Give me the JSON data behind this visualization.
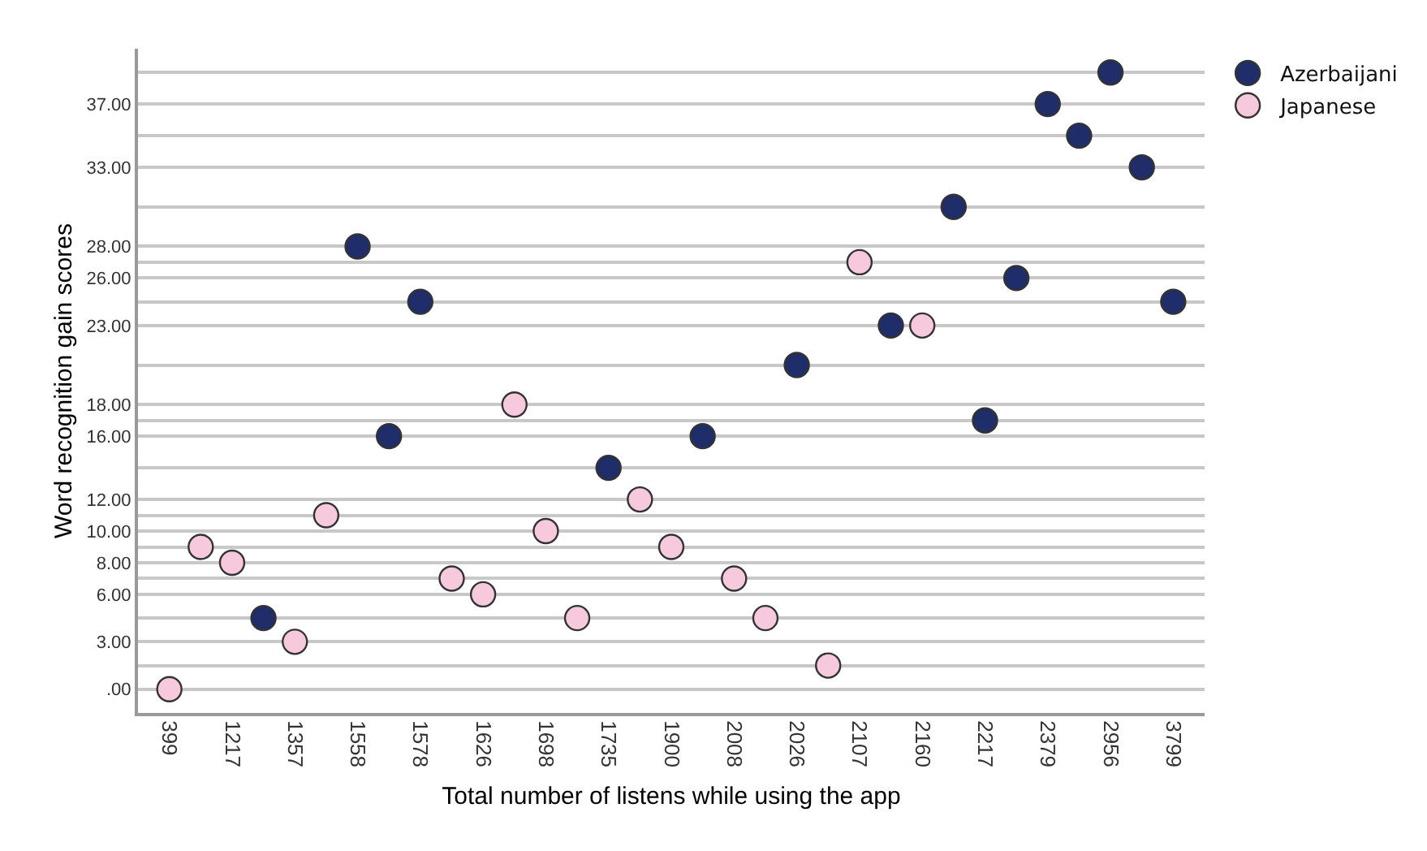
{
  "chart_data": {
    "type": "scatter",
    "xlabel": "Total number of listens while using the app",
    "ylabel": "Word recognition gain scores",
    "categories": [
      "399",
      null,
      "1217",
      null,
      "1357",
      null,
      "1558",
      null,
      "1578",
      null,
      "1626",
      null,
      "1698",
      null,
      "1735",
      null,
      "1900",
      null,
      "2008",
      null,
      "2026",
      null,
      "2107",
      null,
      "2160",
      null,
      "2217",
      null,
      "2379",
      null,
      "2956",
      null,
      "3799"
    ],
    "yticks": [
      {
        "value": 0,
        "label": ".00"
      },
      {
        "value": 1.5,
        "label": null
      },
      {
        "value": 3,
        "label": "3.00"
      },
      {
        "value": 4.5,
        "label": null
      },
      {
        "value": 6,
        "label": "6.00"
      },
      {
        "value": 7,
        "label": null
      },
      {
        "value": 8,
        "label": "8.00"
      },
      {
        "value": 9,
        "label": null
      },
      {
        "value": 10,
        "label": "10.00"
      },
      {
        "value": 11,
        "label": null
      },
      {
        "value": 12,
        "label": "12.00"
      },
      {
        "value": 14,
        "label": null
      },
      {
        "value": 16,
        "label": "16.00"
      },
      {
        "value": 17,
        "label": null
      },
      {
        "value": 18,
        "label": "18.00"
      },
      {
        "value": 20.5,
        "label": null
      },
      {
        "value": 23,
        "label": "23.00"
      },
      {
        "value": 24.5,
        "label": null
      },
      {
        "value": 26,
        "label": "26.00"
      },
      {
        "value": 27,
        "label": null
      },
      {
        "value": 28,
        "label": "28.00"
      },
      {
        "value": 30.5,
        "label": null
      },
      {
        "value": 33,
        "label": "33.00"
      },
      {
        "value": 35,
        "label": null
      },
      {
        "value": 37,
        "label": "37.00"
      },
      {
        "value": 39,
        "label": null
      }
    ],
    "series": [
      {
        "name": "Azerbaijani",
        "color": "#1f2d6b",
        "values": [
          null,
          null,
          null,
          4.5,
          null,
          null,
          28,
          16,
          24.5,
          null,
          null,
          null,
          null,
          null,
          14,
          null,
          null,
          16,
          null,
          null,
          20.5,
          null,
          null,
          23,
          null,
          30.5,
          17,
          26,
          37,
          35,
          39,
          33,
          24.5
        ]
      },
      {
        "name": "Japanese",
        "color": "#f7c9dc",
        "values": [
          0,
          9,
          8,
          null,
          3,
          11,
          null,
          null,
          null,
          7,
          6,
          18,
          10,
          4.5,
          null,
          12,
          9,
          null,
          7,
          4.5,
          null,
          1.5,
          27,
          null,
          23,
          null,
          null,
          null,
          null,
          null,
          null,
          null,
          null
        ]
      }
    ],
    "ylim": [
      -1.5,
      40.5
    ],
    "grid": "y",
    "legend": "top right",
    "marker": "circle"
  }
}
